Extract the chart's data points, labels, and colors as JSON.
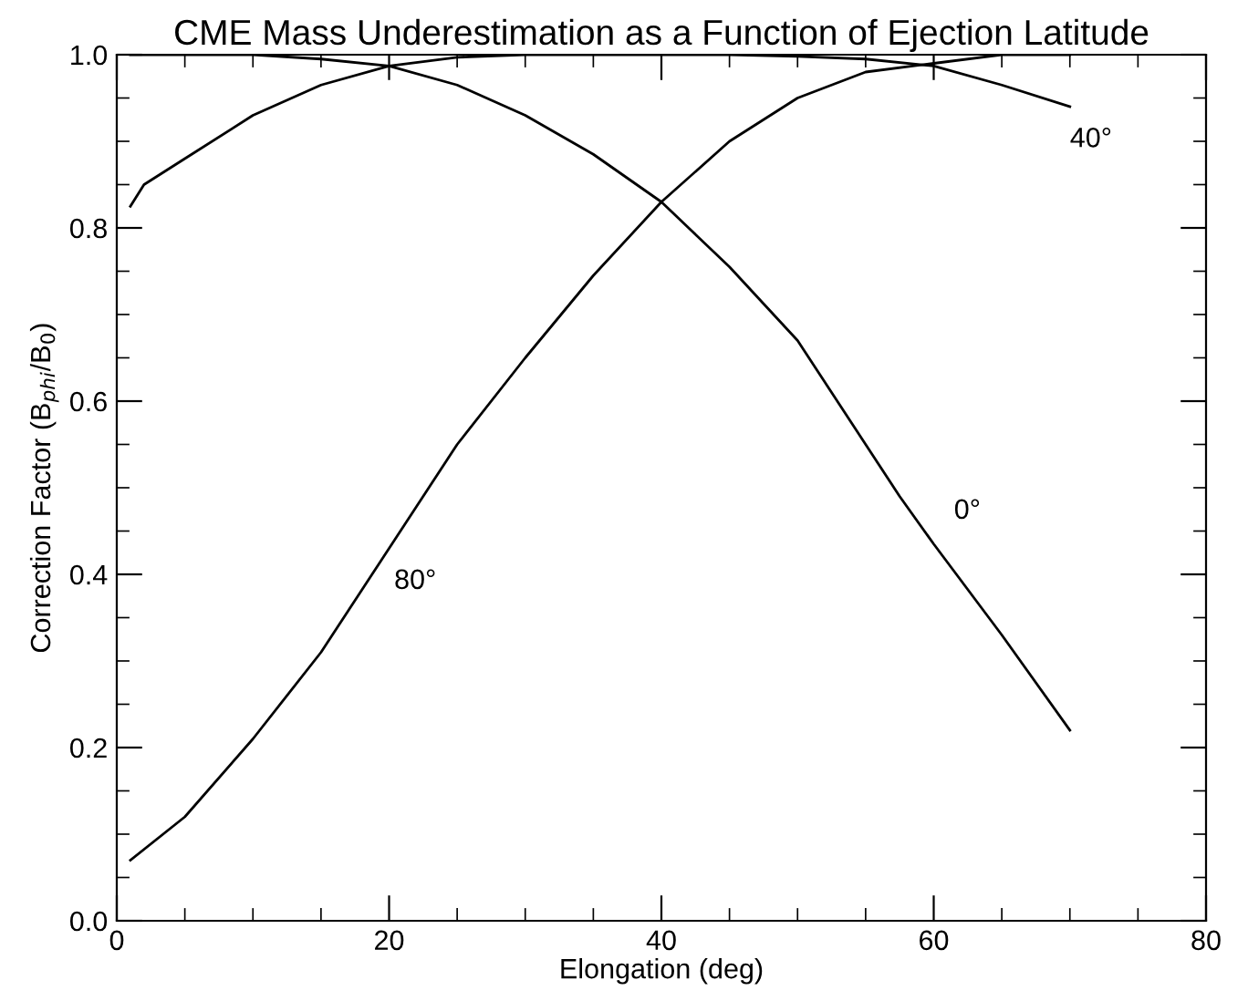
{
  "chart_data": {
    "type": "line",
    "title": "CME Mass Underestimation as a Function of Ejection Latitude",
    "xlabel": "Elongation (deg)",
    "ylabel": "Correction Factor (B$_{phi}$/B$_{0}$)",
    "xlim": [
      0,
      80
    ],
    "xticks": [
      0,
      20,
      40,
      60,
      80
    ],
    "ylim": [
      0.0,
      1.0
    ],
    "yticks": [
      {
        "value": 0.0,
        "label": "0.0"
      },
      {
        "value": 0.2,
        "label": "0.2"
      },
      {
        "value": 0.4,
        "label": "0.4"
      },
      {
        "value": 0.6,
        "label": "0.6"
      },
      {
        "value": 0.8,
        "label": "0.8"
      },
      {
        "value": 1.0,
        "label": "1.0"
      }
    ],
    "grid": false,
    "legend": false,
    "line_style": "solid",
    "marker": "none",
    "series": [
      {
        "name": "0°",
        "color": "#000000",
        "x": [
          1,
          5,
          10,
          15,
          20,
          25,
          30,
          35,
          40,
          45,
          50,
          55,
          57.5,
          60,
          65,
          70
        ],
        "values": [
          1.0,
          1.0,
          1.0,
          0.995,
          0.987,
          0.965,
          0.93,
          0.885,
          0.83,
          0.755,
          0.67,
          0.55,
          0.49,
          0.435,
          0.33,
          0.22
        ]
      },
      {
        "name": "40°",
        "color": "#000000",
        "x": [
          1,
          2,
          5,
          10,
          15,
          20,
          25,
          30,
          35,
          40,
          45,
          50,
          55,
          60,
          65,
          70
        ],
        "values": [
          0.825,
          0.85,
          0.88,
          0.93,
          0.965,
          0.987,
          0.997,
          1.0,
          1.0,
          1.0,
          1.0,
          0.998,
          0.995,
          0.987,
          0.965,
          0.94
        ]
      },
      {
        "name": "80°",
        "color": "#000000",
        "x": [
          1,
          5,
          10,
          15,
          20,
          22.5,
          25,
          30,
          35,
          40,
          45,
          50,
          55,
          60,
          65,
          70
        ],
        "values": [
          0.07,
          0.12,
          0.21,
          0.31,
          0.43,
          0.49,
          0.55,
          0.65,
          0.745,
          0.83,
          0.9,
          0.95,
          0.98,
          0.99,
          1.0,
          1.0
        ]
      }
    ]
  }
}
